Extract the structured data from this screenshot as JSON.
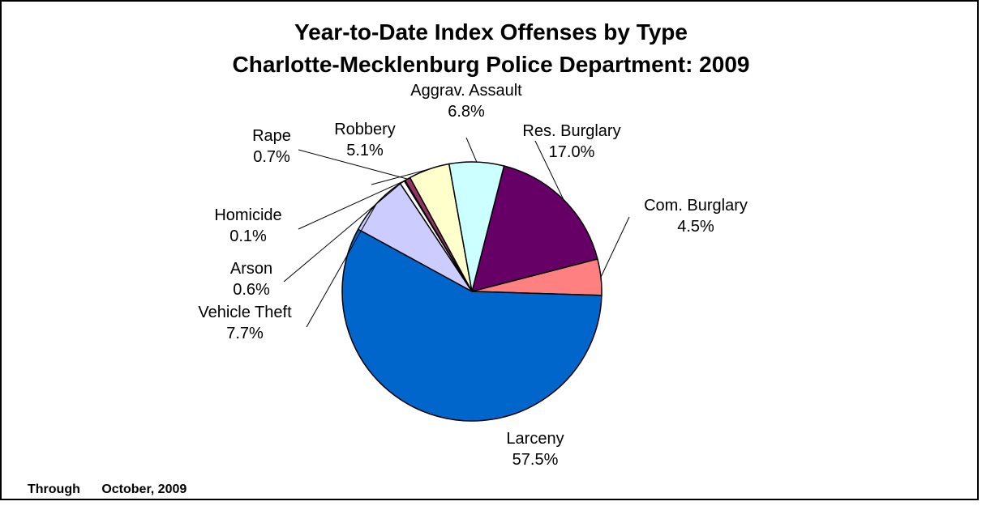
{
  "chart_data": {
    "type": "pie",
    "title": "Year-to-Date Index Offenses by Type",
    "subtitle": "Charlotte-Mecklenburg Police Department: 2009",
    "slices": [
      {
        "name": "Res. Burglary",
        "value": 17.0,
        "pct_label": "17.0%",
        "color": "#660066"
      },
      {
        "name": "Com. Burglary",
        "value": 4.5,
        "pct_label": "4.5%",
        "color": "#ff8080"
      },
      {
        "name": "Larceny",
        "value": 57.5,
        "pct_label": "57.5%",
        "color": "#0066cc"
      },
      {
        "name": "Vehicle Theft",
        "value": 7.7,
        "pct_label": "7.7%",
        "color": "#ccccff"
      },
      {
        "name": "Arson",
        "value": 0.6,
        "pct_label": "0.6%",
        "color": "#ffffff"
      },
      {
        "name": "Homicide",
        "value": 0.1,
        "pct_label": "0.1%",
        "color": "#000080"
      },
      {
        "name": "Rape",
        "value": 0.7,
        "pct_label": "0.7%",
        "color": "#993366"
      },
      {
        "name": "Robbery",
        "value": 5.1,
        "pct_label": "5.1%",
        "color": "#ffffcc"
      },
      {
        "name": "Aggrav. Assault",
        "value": 6.8,
        "pct_label": "6.8%",
        "color": "#ccffff"
      }
    ]
  },
  "footnote": {
    "prefix": "Through",
    "period": "October, 2009"
  }
}
